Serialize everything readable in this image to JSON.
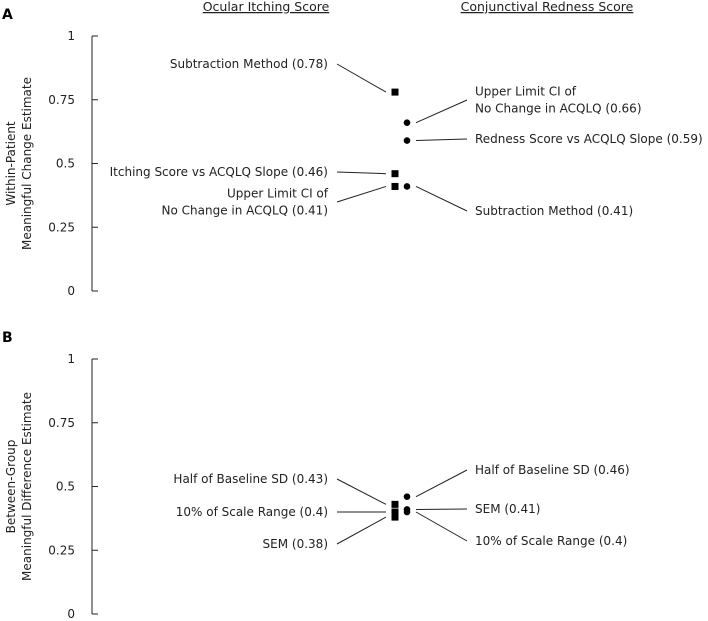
{
  "column_headers": {
    "left": "Ocular Itching Score",
    "right": "Conjunctival Redness Score"
  },
  "chart_data": [
    {
      "type": "scatter",
      "panel_label": "A",
      "ylabel": [
        "Within-Patient",
        "Meaningful Change Estimate"
      ],
      "ylim": [
        0,
        1
      ],
      "yticks": [
        {
          "value": 0,
          "label": "0"
        },
        {
          "value": 0.25,
          "label": "0.25"
        },
        {
          "value": 0.5,
          "label": "0.5"
        },
        {
          "value": 0.75,
          "label": "0.75"
        },
        {
          "value": 1,
          "label": "1"
        }
      ],
      "grid": false,
      "series": [
        {
          "group": "Ocular Itching Score",
          "marker": "square",
          "points": [
            {
              "label": [
                "Subtraction Method (0.78)"
              ],
              "y": 0.78
            },
            {
              "label": [
                "Itching Score vs ACQLQ Slope (0.46)"
              ],
              "y": 0.46
            },
            {
              "label": [
                "Upper Limit CI of",
                "No Change in ACQLQ (0.41)"
              ],
              "y": 0.41
            }
          ]
        },
        {
          "group": "Conjunctival Redness Score",
          "marker": "circle",
          "points": [
            {
              "label": [
                "Upper Limit CI of",
                "No Change in ACQLQ (0.66)"
              ],
              "y": 0.66
            },
            {
              "label": [
                "Redness Score vs ACQLQ Slope (0.59)"
              ],
              "y": 0.59
            },
            {
              "label": [
                "Subtraction Method (0.41)"
              ],
              "y": 0.41
            }
          ]
        }
      ]
    },
    {
      "type": "scatter",
      "panel_label": "B",
      "ylabel": [
        "Between-Group",
        "Meaningful Difference Estimate"
      ],
      "ylim": [
        0,
        1
      ],
      "yticks": [
        {
          "value": 0,
          "label": "0"
        },
        {
          "value": 0.25,
          "label": "0.25"
        },
        {
          "value": 0.5,
          "label": "0.5"
        },
        {
          "value": 0.75,
          "label": "0.75"
        },
        {
          "value": 1,
          "label": "1"
        }
      ],
      "grid": false,
      "series": [
        {
          "group": "Ocular Itching Score",
          "marker": "square",
          "points": [
            {
              "label": [
                "Half of Baseline SD (0.43)"
              ],
              "y": 0.43
            },
            {
              "label": [
                "10% of Scale Range (0.4)"
              ],
              "y": 0.4
            },
            {
              "label": [
                "SEM (0.38)"
              ],
              "y": 0.38
            }
          ]
        },
        {
          "group": "Conjunctival Redness Score",
          "marker": "circle",
          "points": [
            {
              "label": [
                "Half of Baseline SD (0.46)"
              ],
              "y": 0.46
            },
            {
              "label": [
                "SEM (0.41)"
              ],
              "y": 0.41
            },
            {
              "label": [
                "10% of Scale Range (0.4)"
              ],
              "y": 0.4
            }
          ]
        }
      ]
    }
  ]
}
